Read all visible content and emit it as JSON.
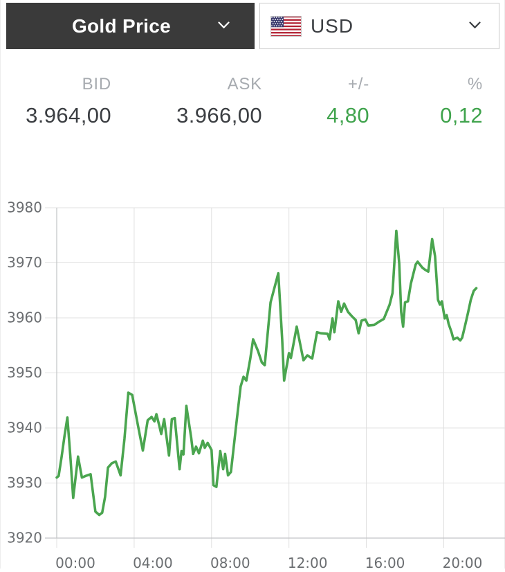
{
  "header": {
    "instrument_label": "Gold Price",
    "currency_label": "USD",
    "flag_icon": "us-flag"
  },
  "quote": {
    "columns": [
      {
        "label": "BID",
        "value": "3.964,00",
        "color": "dark"
      },
      {
        "label": "ASK",
        "value": "3.966,00",
        "color": "dark"
      },
      {
        "label": "+/-",
        "value": "4,80",
        "color": "green"
      },
      {
        "label": "%",
        "value": "0,12",
        "color": "green"
      }
    ]
  },
  "colors": {
    "header_bg": "#3a3a3a",
    "accent_green": "#3fa34c",
    "line": "#4aa54f",
    "grid": "#e0e0e0",
    "axis": "#c2c4c6",
    "tick_text": "#6b6e71",
    "label_gray": "#a7abb0",
    "value_dark": "#3b3e42"
  },
  "chart_data": {
    "type": "line",
    "grid": true,
    "legend": "none",
    "line_color": "#4aa54f",
    "ylim": [
      3920,
      3980
    ],
    "xlim_hours": [
      0,
      23.2
    ],
    "y_ticks": [
      3920,
      3930,
      3940,
      3950,
      3960,
      3970,
      3980
    ],
    "x_ticks": [
      {
        "hours": 0,
        "label": "00:00"
      },
      {
        "hours": 4,
        "label": "04:00"
      },
      {
        "hours": 8,
        "label": "08:00"
      },
      {
        "hours": 12,
        "label": "12:00"
      },
      {
        "hours": 16,
        "label": "16:00"
      },
      {
        "hours": 20,
        "label": "20:00"
      }
    ],
    "series": [
      {
        "name": "Gold Price (USD)",
        "x_hours": [
          0,
          0.1,
          0.25,
          0.4,
          0.55,
          0.7,
          0.85,
          1.1,
          1.3,
          1.5,
          1.75,
          2.0,
          2.2,
          2.35,
          2.5,
          2.65,
          2.85,
          3.05,
          3.3,
          3.5,
          3.7,
          3.9,
          4.2,
          4.45,
          4.7,
          4.9,
          5.05,
          5.15,
          5.3,
          5.4,
          5.55,
          5.8,
          5.95,
          6.1,
          6.2,
          6.35,
          6.45,
          6.55,
          6.7,
          6.95,
          7.05,
          7.2,
          7.35,
          7.55,
          7.65,
          7.8,
          8.0,
          8.1,
          8.25,
          8.45,
          8.6,
          8.7,
          8.85,
          9.0,
          9.3,
          9.5,
          9.65,
          9.8,
          10.0,
          10.15,
          10.4,
          10.6,
          10.75,
          11.05,
          11.45,
          11.65,
          11.75,
          12.0,
          12.1,
          12.4,
          12.65,
          12.75,
          12.95,
          13.2,
          13.45,
          13.65,
          14.0,
          14.1,
          14.25,
          14.35,
          14.55,
          14.7,
          14.85,
          15.05,
          15.25,
          15.45,
          15.6,
          15.75,
          15.95,
          16.1,
          16.4,
          16.7,
          16.9,
          17.2,
          17.35,
          17.55,
          17.7,
          17.8,
          17.9,
          18.0,
          18.15,
          18.3,
          18.55,
          18.65,
          18.9,
          19.05,
          19.2,
          19.4,
          19.55,
          19.7,
          19.8,
          19.9,
          20.05,
          20.15,
          20.25,
          20.4,
          20.5,
          20.7,
          20.85,
          20.95,
          21.1,
          21.25,
          21.4,
          21.55,
          21.68
        ],
        "y": [
          3931.0,
          3931.3,
          3934.7,
          3938.5,
          3941.9,
          3935.0,
          3927.3,
          3934.8,
          3931.0,
          3931.3,
          3931.6,
          3924.8,
          3924.2,
          3924.6,
          3927.5,
          3932.8,
          3933.6,
          3933.9,
          3931.4,
          3938.0,
          3946.4,
          3946.0,
          3940.4,
          3935.9,
          3941.4,
          3942.0,
          3941.2,
          3942.5,
          3940.4,
          3938.9,
          3941.6,
          3935.0,
          3941.6,
          3941.8,
          3938.1,
          3932.5,
          3935.8,
          3935.2,
          3944.0,
          3938.2,
          3935.3,
          3936.6,
          3935.4,
          3937.7,
          3936.4,
          3937.3,
          3936.0,
          3929.6,
          3929.3,
          3935.8,
          3932.5,
          3935.3,
          3931.4,
          3932.0,
          3941.4,
          3947.5,
          3949.3,
          3948.6,
          3952.5,
          3956.1,
          3954.0,
          3951.9,
          3951.4,
          3962.8,
          3968.1,
          3956.1,
          3948.6,
          3953.6,
          3952.7,
          3958.4,
          3954.0,
          3952.3,
          3953.2,
          3952.6,
          3957.4,
          3957.2,
          3957.1,
          3956.1,
          3959.9,
          3957.4,
          3963.0,
          3961.1,
          3962.6,
          3961.1,
          3960.3,
          3959.6,
          3957.2,
          3959.5,
          3959.7,
          3958.6,
          3958.7,
          3959.4,
          3959.8,
          3962.4,
          3964.5,
          3975.8,
          3969.9,
          3961.1,
          3958.4,
          3962.8,
          3963.0,
          3966.2,
          3969.7,
          3970.2,
          3969.1,
          3968.7,
          3968.4,
          3974.3,
          3971.2,
          3963.3,
          3962.4,
          3963.0,
          3959.9,
          3960.5,
          3958.9,
          3957.4,
          3956.1,
          3956.4,
          3955.9,
          3956.4,
          3958.6,
          3960.9,
          3963.3,
          3964.9,
          3965.4
        ]
      }
    ]
  }
}
